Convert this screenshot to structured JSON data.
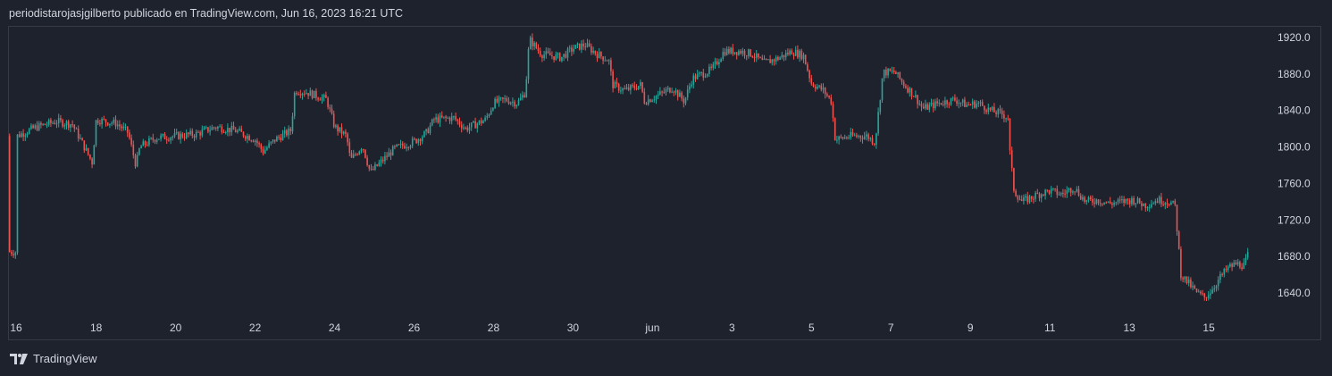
{
  "header": {
    "attribution": "periodistarojasjgilberto publicado en TradingView.com, Jun 16, 2023 16:21 UTC"
  },
  "footer": {
    "brand": "TradingView",
    "logo_icon": "tradingview-logo-icon"
  },
  "colors": {
    "up": "#26a69a",
    "down": "#ef5350",
    "background": "#1e222d",
    "border": "#363a45",
    "text": "#d1d4dc"
  },
  "chart_data": {
    "type": "candlestick",
    "title": "",
    "xlabel": "",
    "ylabel": "",
    "ylim": [
      1615,
      1935
    ],
    "y_ticks": [
      "1920.0",
      "1880.0",
      "1840.0",
      "1800.0",
      "1760.0",
      "1720.0",
      "1680.0",
      "1640.0"
    ],
    "y_tick_values": [
      1920,
      1880,
      1840,
      1800,
      1760,
      1720,
      1680,
      1640
    ],
    "x_range": [
      16,
      47
    ],
    "x_ticks": [
      {
        "label": "16",
        "day": 16
      },
      {
        "label": "18",
        "day": 18
      },
      {
        "label": "20",
        "day": 20
      },
      {
        "label": "22",
        "day": 22
      },
      {
        "label": "24",
        "day": 24
      },
      {
        "label": "26",
        "day": 26
      },
      {
        "label": "28",
        "day": 28
      },
      {
        "label": "30",
        "day": 30
      },
      {
        "label": "jun",
        "day": 32
      },
      {
        "label": "3",
        "day": 34
      },
      {
        "label": "5",
        "day": 36
      },
      {
        "label": "7",
        "day": 38
      },
      {
        "label": "9",
        "day": 40
      },
      {
        "label": "11",
        "day": 42
      },
      {
        "label": "13",
        "day": 44
      },
      {
        "label": "15",
        "day": 46
      }
    ],
    "grid": false,
    "price_path": [
      [
        16.0,
        1812
      ],
      [
        16.5,
        1822
      ],
      [
        17.0,
        1828
      ],
      [
        17.4,
        1825
      ],
      [
        17.7,
        1800
      ],
      [
        17.9,
        1783
      ],
      [
        18.0,
        1830
      ],
      [
        18.5,
        1826
      ],
      [
        18.8,
        1816
      ],
      [
        19.0,
        1780
      ],
      [
        19.1,
        1800
      ],
      [
        19.5,
        1810
      ],
      [
        20.0,
        1812
      ],
      [
        20.5,
        1814
      ],
      [
        21.0,
        1822
      ],
      [
        21.5,
        1818
      ],
      [
        22.0,
        1808
      ],
      [
        22.2,
        1795
      ],
      [
        22.5,
        1808
      ],
      [
        22.9,
        1818
      ],
      [
        23.0,
        1862
      ],
      [
        23.3,
        1860
      ],
      [
        23.8,
        1852
      ],
      [
        24.0,
        1822
      ],
      [
        24.3,
        1812
      ],
      [
        24.4,
        1785
      ],
      [
        24.7,
        1802
      ],
      [
        24.9,
        1772
      ],
      [
        25.2,
        1785
      ],
      [
        25.5,
        1798
      ],
      [
        26.0,
        1806
      ],
      [
        26.3,
        1815
      ],
      [
        26.5,
        1830
      ],
      [
        27.0,
        1832
      ],
      [
        27.3,
        1820
      ],
      [
        27.8,
        1830
      ],
      [
        28.0,
        1848
      ],
      [
        28.3,
        1852
      ],
      [
        28.6,
        1848
      ],
      [
        28.8,
        1860
      ],
      [
        28.9,
        1918
      ],
      [
        29.2,
        1902
      ],
      [
        29.7,
        1898
      ],
      [
        30.0,
        1908
      ],
      [
        30.3,
        1912
      ],
      [
        30.6,
        1902
      ],
      [
        30.9,
        1895
      ],
      [
        31.0,
        1868
      ],
      [
        31.3,
        1862
      ],
      [
        31.7,
        1868
      ],
      [
        31.8,
        1850
      ],
      [
        32.2,
        1858
      ],
      [
        32.5,
        1865
      ],
      [
        32.8,
        1850
      ],
      [
        33.0,
        1875
      ],
      [
        33.5,
        1885
      ],
      [
        33.8,
        1905
      ],
      [
        34.2,
        1905
      ],
      [
        34.5,
        1902
      ],
      [
        34.8,
        1892
      ],
      [
        35.2,
        1898
      ],
      [
        35.5,
        1905
      ],
      [
        35.8,
        1900
      ],
      [
        36.0,
        1870
      ],
      [
        36.3,
        1862
      ],
      [
        36.5,
        1850
      ],
      [
        36.6,
        1808
      ],
      [
        37.0,
        1812
      ],
      [
        37.4,
        1812
      ],
      [
        37.6,
        1805
      ],
      [
        37.8,
        1882
      ],
      [
        38.1,
        1882
      ],
      [
        38.3,
        1870
      ],
      [
        38.6,
        1856
      ],
      [
        38.8,
        1842
      ],
      [
        39.2,
        1848
      ],
      [
        39.6,
        1852
      ],
      [
        39.9,
        1846
      ],
      [
        40.2,
        1848
      ],
      [
        40.5,
        1840
      ],
      [
        40.8,
        1836
      ],
      [
        40.95,
        1832
      ],
      [
        41.0,
        1790
      ],
      [
        41.1,
        1752
      ],
      [
        41.3,
        1740
      ],
      [
        41.7,
        1748
      ],
      [
        42.0,
        1752
      ],
      [
        42.3,
        1748
      ],
      [
        42.6,
        1756
      ],
      [
        42.9,
        1740
      ],
      [
        43.2,
        1742
      ],
      [
        43.5,
        1738
      ],
      [
        43.8,
        1740
      ],
      [
        44.1,
        1742
      ],
      [
        44.4,
        1736
      ],
      [
        44.7,
        1742
      ],
      [
        45.0,
        1740
      ],
      [
        45.15,
        1735
      ],
      [
        45.3,
        1660
      ],
      [
        45.5,
        1650
      ],
      [
        45.7,
        1640
      ],
      [
        45.9,
        1635
      ],
      [
        46.1,
        1645
      ],
      [
        46.3,
        1658
      ],
      [
        46.5,
        1668
      ],
      [
        46.7,
        1672
      ],
      [
        46.9,
        1670
      ],
      [
        47.0,
        1685
      ]
    ]
  }
}
